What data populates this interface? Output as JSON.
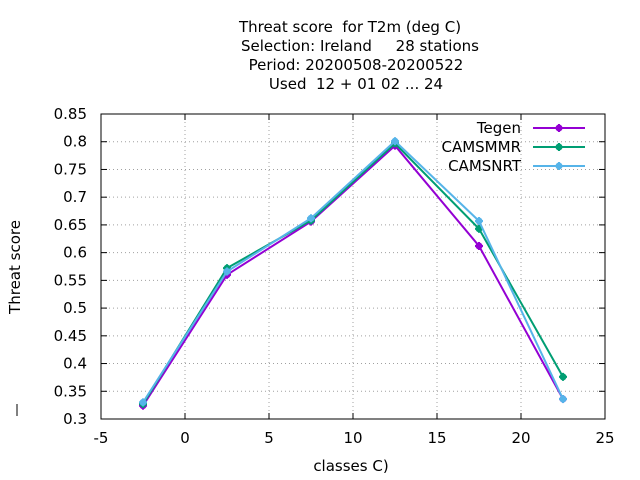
{
  "title_lines": [
    "Threat score  for T2m (deg C)",
    "Selection: Ireland     28 stations",
    "Period: 20200508-20200522",
    "Used  12 + 01 02 ... 24"
  ],
  "chart_data": {
    "type": "line",
    "xlabel": "classes C)",
    "ylabel": "Threat score",
    "xlim": [
      -5,
      25
    ],
    "ylim": [
      0.3,
      0.85
    ],
    "x_ticks": [
      -5,
      0,
      5,
      10,
      15,
      20,
      25
    ],
    "x_tick_labels": [
      "-5",
      "0",
      "5",
      "10",
      "15",
      "20",
      "25"
    ],
    "y_ticks": [
      0.3,
      0.35,
      0.4,
      0.45,
      0.5,
      0.55,
      0.6,
      0.65,
      0.7,
      0.75,
      0.8,
      0.85
    ],
    "y_tick_labels": [
      "0.3",
      "0.35",
      "0.4",
      "0.45",
      "0.5",
      "0.55",
      "0.6",
      "0.65",
      "0.7",
      "0.75",
      "0.8",
      "0.85"
    ],
    "grid": true,
    "legend_position": "top-right",
    "series": [
      {
        "name": "Tegen",
        "color": "#9400d3",
        "x": [
          -2.5,
          2.5,
          7.5,
          12.5,
          17.5,
          22.5
        ],
        "y": [
          0.324,
          0.56,
          0.656,
          0.793,
          0.612,
          0.336
        ]
      },
      {
        "name": "CAMSMMR",
        "color": "#009e73",
        "x": [
          -2.5,
          2.5,
          7.5,
          12.5,
          17.5,
          22.5
        ],
        "y": [
          0.327,
          0.572,
          0.658,
          0.797,
          0.643,
          0.376
        ]
      },
      {
        "name": "CAMSNRT",
        "color": "#56b4e9",
        "x": [
          -2.5,
          2.5,
          7.5,
          12.5,
          17.5,
          22.5
        ],
        "y": [
          0.33,
          0.566,
          0.662,
          0.801,
          0.657,
          0.336
        ]
      }
    ]
  }
}
